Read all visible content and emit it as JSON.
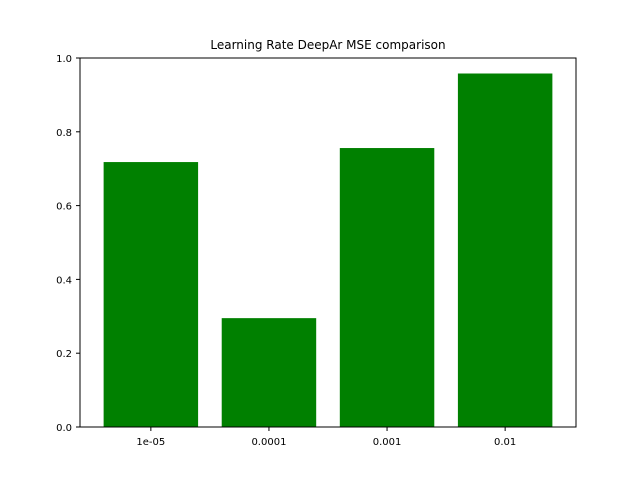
{
  "chart_data": {
    "type": "bar",
    "title": "Learning Rate DeepAr MSE comparison",
    "xlabel": "",
    "ylabel": "",
    "categories": [
      "1e-05",
      "0.0001",
      "0.001",
      "0.01"
    ],
    "values": [
      0.718,
      0.295,
      0.756,
      0.958
    ],
    "ylim": [
      0,
      1.0
    ],
    "yticks": [
      0.0,
      0.2,
      0.4,
      0.6,
      0.8,
      1.0
    ],
    "ytick_labels": [
      "0.0",
      "0.2",
      "0.4",
      "0.6",
      "0.8",
      "1.0"
    ],
    "bar_color": "#008000",
    "grid": false,
    "legend": "none"
  }
}
